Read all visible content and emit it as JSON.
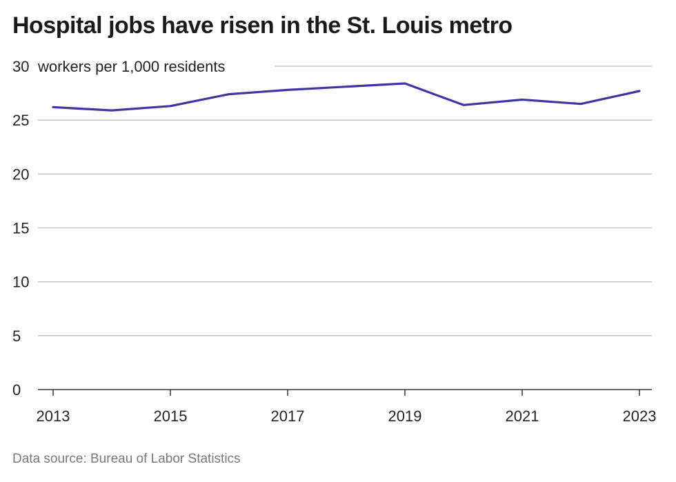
{
  "chart_data": {
    "type": "line",
    "title": "Hospital jobs have risen in the St. Louis metro",
    "unit_label": "workers per 1,000 residents",
    "source": "Data source: Bureau of Labor Statistics",
    "x": [
      2013,
      2014,
      2015,
      2016,
      2017,
      2018,
      2019,
      2020,
      2021,
      2022,
      2023
    ],
    "series": [
      {
        "values": [
          26.2,
          25.9,
          26.3,
          27.4,
          27.8,
          28.1,
          28.4,
          26.4,
          26.9,
          26.5,
          27.7
        ],
        "color": "#3d35a0"
      }
    ],
    "x_ticks": [
      2013,
      2015,
      2017,
      2019,
      2021,
      2023
    ],
    "x_tick_labels": [
      "2013",
      "2015",
      "2017",
      "2019",
      "2021",
      "2023"
    ],
    "y_ticks": [
      0,
      5,
      10,
      15,
      20,
      25,
      30
    ],
    "y_tick_labels": [
      "0",
      "5",
      "10",
      "15",
      "20",
      "25",
      "30"
    ],
    "xlim": [
      2013,
      2023
    ],
    "ylim": [
      0,
      30
    ],
    "grid": true,
    "colors": {
      "line": "#3d35a0",
      "grid": "#bdbdbd",
      "axis": "#333333"
    }
  }
}
